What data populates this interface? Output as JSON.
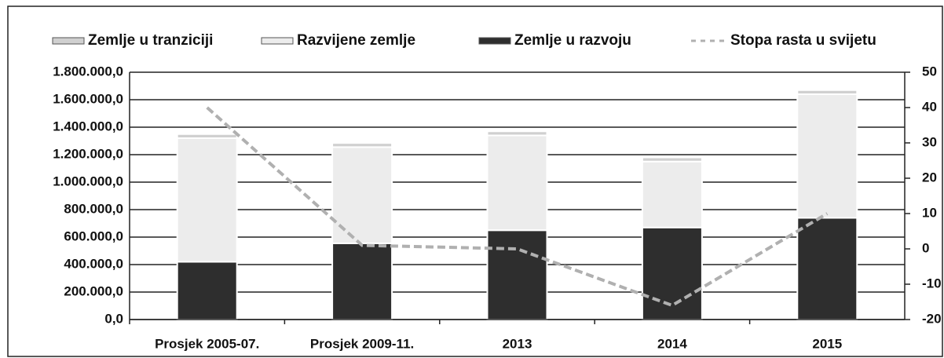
{
  "chart_data": {
    "type": "bar",
    "stacked": true,
    "categories": [
      "Prosjek 2005-07.",
      "Prosjek 2009-11.",
      "2013",
      "2014",
      "2015"
    ],
    "series": [
      {
        "name": "Zemlje u tranziciji",
        "color": "#d0d0d0",
        "values": [
          30000,
          30000,
          30000,
          30000,
          30000
        ]
      },
      {
        "name": "Razvijene zemlje",
        "color": "#ececec",
        "values": [
          900000,
          700000,
          690000,
          480000,
          900000
        ]
      },
      {
        "name": "Zemlje u razvoju",
        "color": "#2e2e2e",
        "values": [
          420000,
          555000,
          650000,
          670000,
          740000
        ]
      },
      {
        "name": "Stopa rasta u svijetu",
        "type": "line",
        "axis": "y2",
        "color": "#b0b0b0",
        "values": [
          40,
          1,
          0,
          -16,
          10
        ]
      }
    ],
    "stack_order": [
      "Zemlje u razvoju",
      "Razvijene zemlje",
      "Zemlje u tranziciji"
    ],
    "ylim": [
      0,
      1800000
    ],
    "yticks": [
      {
        "value": 0,
        "label": "0,0"
      },
      {
        "value": 200000,
        "label": "200.000,0"
      },
      {
        "value": 400000,
        "label": "400.000,0"
      },
      {
        "value": 600000,
        "label": "600.000,0"
      },
      {
        "value": 800000,
        "label": "800.000,0"
      },
      {
        "value": 1000000,
        "label": "1.000.000,0"
      },
      {
        "value": 1200000,
        "label": "1.200.000,0"
      },
      {
        "value": 1400000,
        "label": "1.400.000,0"
      },
      {
        "value": 1600000,
        "label": "1.600.000,0"
      },
      {
        "value": 1800000,
        "label": "1.800.000,0"
      }
    ],
    "y2lim": [
      -20,
      50
    ],
    "y2ticks": [
      -20,
      -10,
      0,
      10,
      20,
      30,
      40,
      50
    ],
    "grid": true,
    "legend": "top"
  }
}
